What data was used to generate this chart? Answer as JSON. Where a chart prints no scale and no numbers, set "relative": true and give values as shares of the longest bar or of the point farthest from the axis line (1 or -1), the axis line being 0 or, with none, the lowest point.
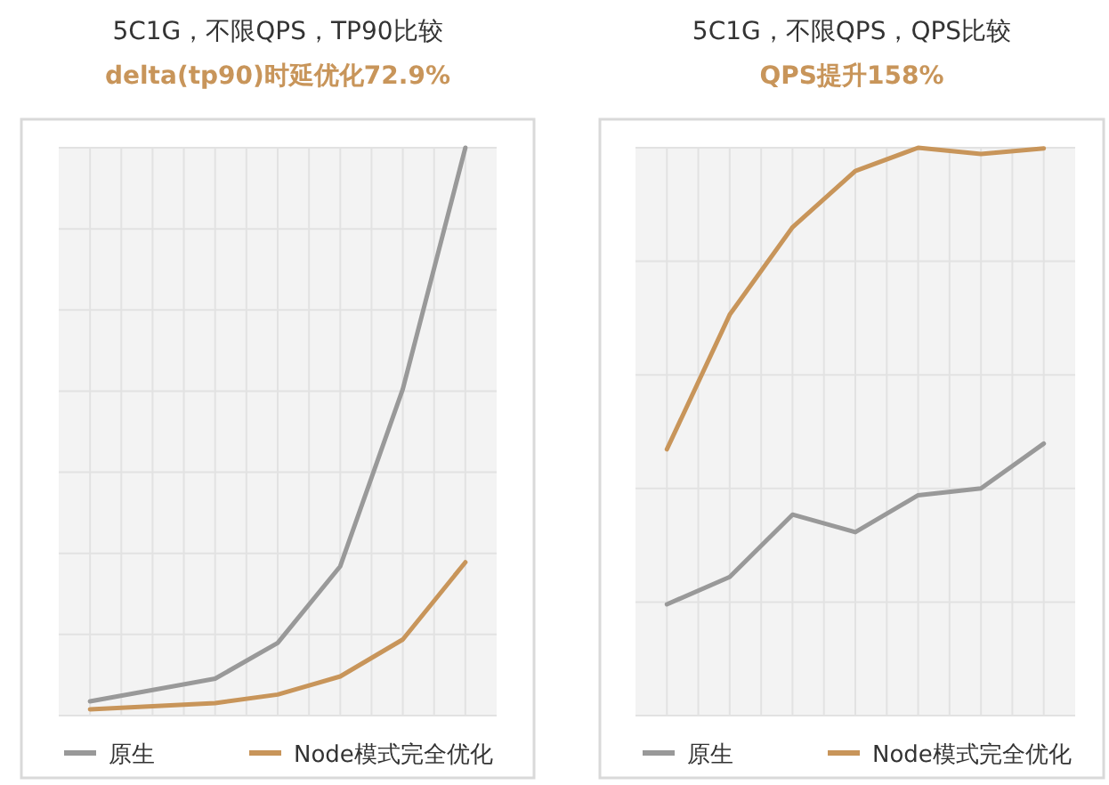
{
  "chart_data": [
    {
      "type": "line",
      "title": "5C1G，不限QPS，TP90比较",
      "subtitle": "delta(tp90)时延优化72.9%",
      "relative": true,
      "categories": [
        null,
        null,
        null,
        null,
        null,
        null,
        null
      ],
      "grid": true,
      "legend": "bottom",
      "marker": "none",
      "line_style": "solid",
      "series": [
        {
          "name": "原生",
          "color": "#999999",
          "values": [
            0.025,
            null,
            0.065,
            0.128,
            0.263,
            0.575,
            1
          ]
        },
        {
          "name": "Node模式完全优化",
          "color": "#c8955a",
          "values": [
            0.011,
            null,
            0.022,
            0.037,
            0.069,
            0.134,
            0.27
          ]
        }
      ]
    },
    {
      "type": "line",
      "title": "5C1G，不限QPS，QPS比较",
      "subtitle": "QPS提升158%",
      "relative": true,
      "categories": [
        null,
        null,
        null,
        null,
        null,
        null,
        null
      ],
      "grid": true,
      "legend": "bottom",
      "marker": "none",
      "line_style": "solid",
      "series": [
        {
          "name": "原生",
          "color": "#999999",
          "values": [
            0.196,
            0.244,
            0.354,
            0.323,
            0.388,
            0.4,
            0.479
          ]
        },
        {
          "name": "Node模式完全优化",
          "color": "#c8955a",
          "values": [
            0.469,
            0.706,
            0.86,
            0.959,
            1,
            0.989,
            0.999
          ]
        }
      ]
    }
  ]
}
